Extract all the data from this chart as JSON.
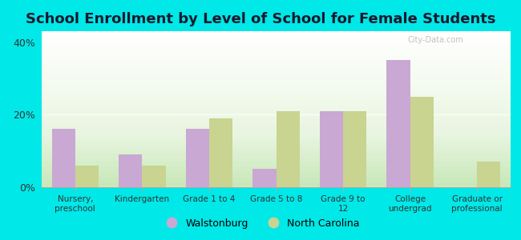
{
  "title": "School Enrollment by Level of School for Female Students",
  "categories": [
    "Nursery,\npreschool",
    "Kindergarten",
    "Grade 1 to 4",
    "Grade 5 to 8",
    "Grade 9 to\n12",
    "College\nundergrad",
    "Graduate or\nprofessional"
  ],
  "walstonburg": [
    16,
    9,
    16,
    5,
    21,
    35,
    0
  ],
  "north_carolina": [
    6,
    6,
    19,
    21,
    21,
    25,
    7
  ],
  "color_walstonburg": "#c9a8d4",
  "color_nc": "#c8d490",
  "yticks": [
    0,
    20,
    40
  ],
  "ylim": [
    0,
    43
  ],
  "background_outer": "#00e8e8",
  "background_inner_top": "#ffffff",
  "background_inner_bottom": "#c8e8b8",
  "legend_labels": [
    "Walstonburg",
    "North Carolina"
  ],
  "title_fontsize": 13,
  "bar_width": 0.35,
  "watermark": "City-Data.com"
}
